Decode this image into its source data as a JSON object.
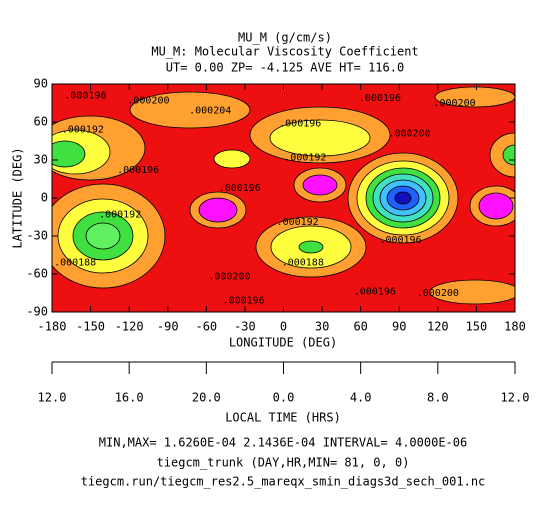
{
  "chart_data": {
    "type": "contour",
    "title": "MU_M (g/cm/s)",
    "subtitle": "MU_M: Molecular Viscosity Coefficient",
    "subtitle2": "UT= 0.00 ZP= -4.125 AVE HT= 116.0",
    "x_label": "LONGITUDE (DEG)",
    "y_label": "LATITUDE (DEG)",
    "xlim": [
      -180,
      180
    ],
    "ylim": [
      -90,
      90
    ],
    "xticks": [
      -180,
      -150,
      -120,
      -90,
      -60,
      -30,
      0,
      30,
      60,
      90,
      120,
      150,
      180
    ],
    "yticks": [
      -90,
      -60,
      -30,
      0,
      30,
      60,
      90
    ],
    "x2_label": "LOCAL TIME (HRS)",
    "x2ticks": [
      {
        "value": -180,
        "label": "12.0"
      },
      {
        "value": -120,
        "label": "16.0"
      },
      {
        "value": -60,
        "label": "20.0"
      },
      {
        "value": 0,
        "label": "0.0"
      },
      {
        "value": 60,
        "label": "4.0"
      },
      {
        "value": 120,
        "label": "8.0"
      },
      {
        "value": 180,
        "label": "12.0"
      }
    ],
    "contour_labels": [
      {
        "text": ".000196",
        "x": -154,
        "y": 81
      },
      {
        "text": ".000200",
        "x": -105,
        "y": 77
      },
      {
        "text": ".000204",
        "x": -57,
        "y": 69
      },
      {
        "text": ".000196",
        "x": 13,
        "y": 59
      },
      {
        "text": ".000196",
        "x": 75,
        "y": 79
      },
      {
        "text": ".000200",
        "x": 133,
        "y": 75
      },
      {
        "text": ".000192",
        "x": -156,
        "y": 54
      },
      {
        "text": ".000200",
        "x": 98,
        "y": 51
      },
      {
        "text": ".000192",
        "x": 17,
        "y": 32
      },
      {
        "text": ".000196",
        "x": -113,
        "y": 22
      },
      {
        "text": ".000196",
        "x": -34,
        "y": 8
      },
      {
        "text": ".000192",
        "x": -127,
        "y": -13
      },
      {
        "text": ".000192",
        "x": 11,
        "y": -19
      },
      {
        "text": ".000196",
        "x": 91,
        "y": -33
      },
      {
        "text": ".000188",
        "x": -162,
        "y": -51
      },
      {
        "text": ".000188",
        "x": 15,
        "y": -51
      },
      {
        "text": ".000200",
        "x": -42,
        "y": -62
      },
      {
        "text": ".000196",
        "x": -31,
        "y": -81
      },
      {
        "text": ".000196",
        "x": 71,
        "y": -74
      },
      {
        "text": ".000200",
        "x": 120,
        "y": -75
      }
    ],
    "footer": [
      "MIN,MAX=  1.6260E-04  2.1436E-04 INTERVAL=  4.0000E-06",
      "tiegcm_trunk (DAY,HR,MIN= 81, 0, 0)",
      "tiegcm.run/tiegcm_res2.5_mareqx_smin_diags3d_sech_001.nc"
    ]
  }
}
